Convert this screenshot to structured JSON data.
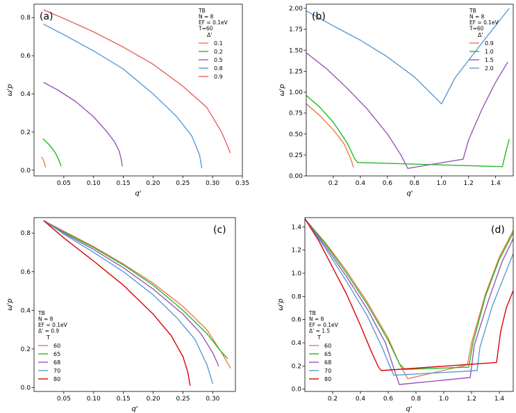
{
  "chart_data": [
    {
      "type": "line",
      "panel_label": "(a)",
      "xlabel": "q'",
      "ylabel": "ω'p",
      "xlim": [
        0.0,
        0.35
      ],
      "ylim": [
        -0.03,
        0.87
      ],
      "xticks": [
        0.05,
        0.1,
        0.15,
        0.2,
        0.25,
        0.3,
        0.35
      ],
      "xtick_labels": [
        "0.05",
        "0.10",
        "0.15",
        "0.20",
        "0.25",
        "0.30",
        "0.35"
      ],
      "yticks": [
        0.0,
        0.2,
        0.4,
        0.6,
        0.8
      ],
      "ytick_labels": [
        "0.0",
        "0.2",
        "0.4",
        "0.6",
        "0.8"
      ],
      "info_lines": [
        "TB",
        "N = 8",
        "EF = 0.1eV",
        "T=60"
      ],
      "legend_title": "Δ'",
      "legend_position": "top-right",
      "series": [
        {
          "name": "0.1",
          "color": "#f07850",
          "x": [
            0.013,
            0.016,
            0.018,
            0.0195
          ],
          "y": [
            0.07,
            0.05,
            0.03,
            0.015
          ]
        },
        {
          "name": "0.2",
          "color": "#22bb22",
          "x": [
            0.015,
            0.025,
            0.035,
            0.04,
            0.044,
            0.0455
          ],
          "y": [
            0.165,
            0.135,
            0.095,
            0.065,
            0.035,
            0.02
          ]
        },
        {
          "name": "0.5",
          "color": "#9955bb",
          "x": [
            0.016,
            0.04,
            0.07,
            0.1,
            0.12,
            0.135,
            0.143,
            0.147,
            0.148
          ],
          "y": [
            0.46,
            0.42,
            0.36,
            0.28,
            0.21,
            0.15,
            0.1,
            0.05,
            0.02
          ]
        },
        {
          "name": "0.8",
          "color": "#5b9bd5",
          "x": [
            0.016,
            0.05,
            0.1,
            0.15,
            0.2,
            0.24,
            0.265,
            0.278,
            0.282
          ],
          "y": [
            0.765,
            0.71,
            0.625,
            0.53,
            0.4,
            0.28,
            0.18,
            0.08,
            0.01
          ]
        },
        {
          "name": "0.9",
          "color": "#e86060",
          "x": [
            0.016,
            0.05,
            0.1,
            0.15,
            0.2,
            0.25,
            0.29,
            0.315,
            0.33
          ],
          "y": [
            0.84,
            0.795,
            0.725,
            0.645,
            0.555,
            0.44,
            0.33,
            0.2,
            0.09
          ]
        }
      ]
    },
    {
      "type": "line",
      "panel_label": "(b)",
      "xlabel": "q'",
      "ylabel": "ω'p",
      "xlim": [
        0.0,
        1.53
      ],
      "ylim": [
        0.0,
        2.05
      ],
      "xticks": [
        0.2,
        0.4,
        0.6,
        0.8,
        1.0,
        1.2,
        1.4
      ],
      "xtick_labels": [
        "0.2",
        "0.4",
        "0.6",
        "0.8",
        "1.0",
        "1.2",
        "1.4"
      ],
      "yticks": [
        0.0,
        0.25,
        0.5,
        0.75,
        1.0,
        1.25,
        1.5,
        1.75,
        2.0
      ],
      "ytick_labels": [
        "0.00",
        "0.25",
        "0.50",
        "0.75",
        "1.00",
        "1.25",
        "1.50",
        "1.75",
        "2.00"
      ],
      "info_lines": [
        "TB",
        "N = 8",
        "EF = 0.1eV",
        "T=60"
      ],
      "legend_title": "Δ'",
      "legend_position": "top-right",
      "series": [
        {
          "name": "0.9",
          "color": "#f07850",
          "x": [
            0.0,
            0.1,
            0.2,
            0.28,
            0.33,
            0.35
          ],
          "y": [
            0.86,
            0.72,
            0.55,
            0.38,
            0.2,
            0.1
          ]
        },
        {
          "name": "1.0",
          "color": "#22bb22",
          "x": [
            0.0,
            0.1,
            0.2,
            0.3,
            0.36,
            0.38,
            1.45,
            1.47,
            1.5
          ],
          "y": [
            0.96,
            0.82,
            0.64,
            0.4,
            0.2,
            0.16,
            0.11,
            0.25,
            0.44
          ]
        },
        {
          "name": "1.5",
          "color": "#9955bb",
          "x": [
            0.0,
            0.15,
            0.3,
            0.45,
            0.6,
            0.7,
            0.75,
            1.16,
            1.2,
            1.3,
            1.4,
            1.49
          ],
          "y": [
            1.47,
            1.28,
            1.05,
            0.8,
            0.5,
            0.25,
            0.09,
            0.2,
            0.43,
            0.8,
            1.12,
            1.36
          ]
        },
        {
          "name": "2.0",
          "color": "#5b9bd5",
          "x": [
            0.0,
            0.2,
            0.4,
            0.6,
            0.8,
            1.0,
            1.1,
            1.3,
            1.5
          ],
          "y": [
            1.97,
            1.79,
            1.62,
            1.42,
            1.18,
            0.86,
            1.17,
            1.59,
            2.0
          ]
        }
      ]
    },
    {
      "type": "line",
      "panel_label": "(c)",
      "xlabel": "q'",
      "ylabel": "ω'p",
      "xlim": [
        0.0,
        0.338
      ],
      "ylim": [
        -0.02,
        0.88
      ],
      "xticks": [
        0.05,
        0.1,
        0.15,
        0.2,
        0.25,
        0.3
      ],
      "xtick_labels": [
        "0.05",
        "0.10",
        "0.15",
        "0.20",
        "0.25",
        "0.30"
      ],
      "yticks": [
        0.0,
        0.2,
        0.4,
        0.6,
        0.8
      ],
      "ytick_labels": [
        "0.0",
        "0.2",
        "0.4",
        "0.6",
        "0.8"
      ],
      "info_lines": [
        "TB",
        "N = 8",
        "EF = 0.1eV",
        "Δ' = 0.9"
      ],
      "legend_title": "T",
      "legend_position": "lower-left",
      "series": [
        {
          "name": "60",
          "color": "#f07850",
          "x": [
            0.016,
            0.05,
            0.1,
            0.15,
            0.2,
            0.25,
            0.29,
            0.315,
            0.33
          ],
          "y": [
            0.865,
            0.81,
            0.73,
            0.64,
            0.54,
            0.42,
            0.3,
            0.18,
            0.1
          ]
        },
        {
          "name": "65",
          "color": "#22bb22",
          "x": [
            0.016,
            0.05,
            0.1,
            0.15,
            0.2,
            0.25,
            0.29,
            0.313,
            0.325
          ],
          "y": [
            0.865,
            0.805,
            0.725,
            0.635,
            0.53,
            0.4,
            0.28,
            0.19,
            0.15
          ]
        },
        {
          "name": "68",
          "color": "#9955bb",
          "x": [
            0.016,
            0.05,
            0.1,
            0.15,
            0.2,
            0.25,
            0.28,
            0.3,
            0.31
          ],
          "y": [
            0.865,
            0.8,
            0.715,
            0.62,
            0.51,
            0.38,
            0.28,
            0.18,
            0.11
          ]
        },
        {
          "name": "70",
          "color": "#5b9bd5",
          "x": [
            0.016,
            0.05,
            0.1,
            0.15,
            0.2,
            0.24,
            0.27,
            0.29,
            0.3
          ],
          "y": [
            0.865,
            0.795,
            0.7,
            0.6,
            0.48,
            0.36,
            0.25,
            0.12,
            0.02
          ]
        },
        {
          "name": "80",
          "color": "#dd0000",
          "x": [
            0.016,
            0.05,
            0.1,
            0.15,
            0.2,
            0.23,
            0.25,
            0.258,
            0.262
          ],
          "y": [
            0.865,
            0.775,
            0.655,
            0.53,
            0.38,
            0.27,
            0.16,
            0.08,
            0.01
          ]
        }
      ]
    },
    {
      "type": "line",
      "panel_label": "(d)",
      "xlabel": "q'",
      "ylabel": "ω'p",
      "xlim": [
        0.0,
        1.5
      ],
      "ylim": [
        -0.02,
        1.48
      ],
      "xticks": [
        0.2,
        0.4,
        0.6,
        0.8,
        1.0,
        1.2,
        1.4
      ],
      "xtick_labels": [
        "0.2",
        "0.4",
        "0.6",
        "0.8",
        "1.0",
        "1.2",
        "1.4"
      ],
      "yticks": [
        0.0,
        0.2,
        0.4,
        0.6,
        0.8,
        1.0,
        1.2,
        1.4
      ],
      "ytick_labels": [
        "0.0",
        "0.2",
        "0.4",
        "0.6",
        "0.8",
        "1.0",
        "1.2",
        "1.4"
      ],
      "info_lines": [
        "TB",
        "N = 8",
        "EF = 0.1eV",
        "Δ' = 1.5"
      ],
      "legend_title": "T",
      "legend_position": "lower-left",
      "series": [
        {
          "name": "60",
          "color": "#f07850",
          "x": [
            0.0,
            0.15,
            0.3,
            0.45,
            0.6,
            0.68,
            0.74,
            1.17,
            1.2,
            1.3,
            1.4,
            1.5
          ],
          "y": [
            1.47,
            1.26,
            1.02,
            0.75,
            0.44,
            0.22,
            0.09,
            0.21,
            0.4,
            0.82,
            1.14,
            1.37
          ]
        },
        {
          "name": "65",
          "color": "#22bb22",
          "x": [
            0.0,
            0.15,
            0.3,
            0.45,
            0.6,
            0.68,
            0.72,
            1.18,
            1.21,
            1.3,
            1.4,
            1.5
          ],
          "y": [
            1.47,
            1.25,
            1.0,
            0.73,
            0.42,
            0.22,
            0.17,
            0.19,
            0.4,
            0.8,
            1.12,
            1.35
          ]
        },
        {
          "name": "68",
          "color": "#9955bb",
          "x": [
            0.0,
            0.15,
            0.3,
            0.45,
            0.58,
            0.64,
            0.68,
            1.19,
            1.22,
            1.32,
            1.42,
            1.5
          ],
          "y": [
            1.47,
            1.23,
            0.97,
            0.69,
            0.4,
            0.18,
            0.04,
            0.1,
            0.38,
            0.76,
            1.1,
            1.3
          ]
        },
        {
          "name": "70",
          "color": "#5b9bd5",
          "x": [
            0.0,
            0.15,
            0.3,
            0.45,
            0.56,
            0.61,
            0.64,
            1.24,
            1.26,
            1.35,
            1.45,
            1.5
          ],
          "y": [
            1.47,
            1.21,
            0.93,
            0.63,
            0.35,
            0.2,
            0.12,
            0.16,
            0.36,
            0.72,
            1.02,
            1.17
          ]
        },
        {
          "name": "80",
          "color": "#dd0000",
          "x": [
            0.0,
            0.1,
            0.2,
            0.3,
            0.4,
            0.48,
            0.53,
            0.55,
            1.38,
            1.41,
            1.45,
            1.5
          ],
          "y": [
            1.47,
            1.28,
            1.05,
            0.82,
            0.55,
            0.32,
            0.19,
            0.16,
            0.23,
            0.5,
            0.7,
            0.85
          ]
        }
      ]
    }
  ]
}
